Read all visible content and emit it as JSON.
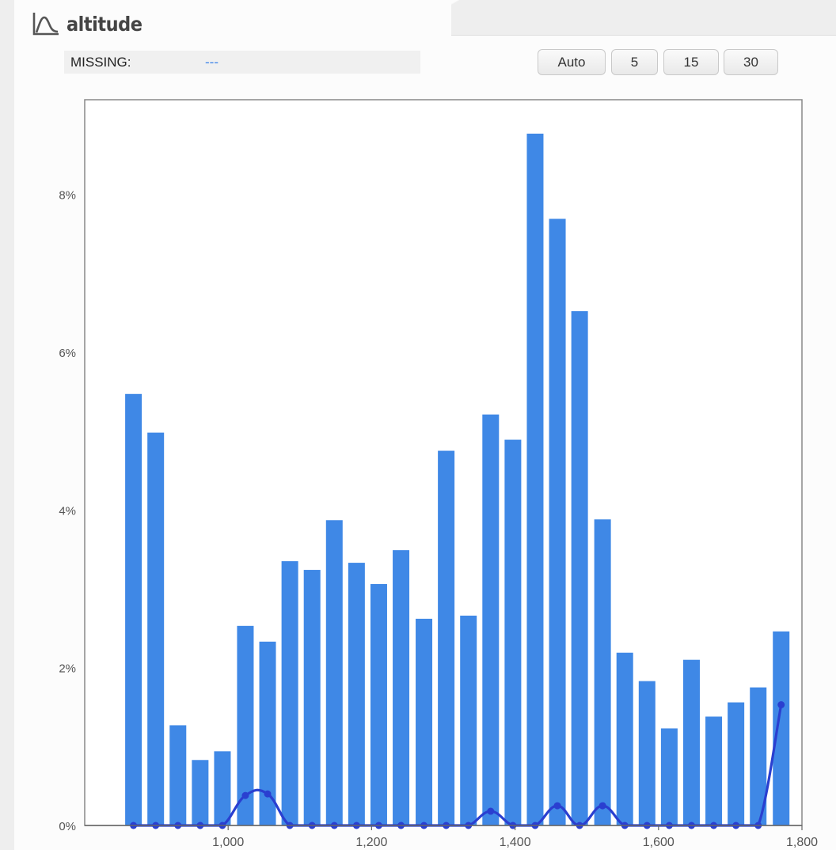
{
  "header": {
    "title": "altitude",
    "icon": "distribution-curve-icon"
  },
  "missing": {
    "label": "MISSING:",
    "value": "---"
  },
  "bin_buttons": [
    {
      "label": "Auto"
    },
    {
      "label": "5"
    },
    {
      "label": "15"
    },
    {
      "label": "30"
    }
  ],
  "colors": {
    "bar": "#3f88e6",
    "line": "#2a3fd0",
    "frame": "#888888"
  },
  "chart_data": {
    "type": "bar",
    "title": "",
    "xlabel": "",
    "ylabel": "",
    "xlim": [
      800,
      1800
    ],
    "ylim": [
      0,
      9.2
    ],
    "grid": false,
    "x_ticks": [
      {
        "value": 1000,
        "label": "1,000"
      },
      {
        "value": 1200,
        "label": "1,200"
      },
      {
        "value": 1400,
        "label": "1,400"
      },
      {
        "value": 1600,
        "label": "1,600"
      },
      {
        "value": 1800,
        "label": "1,800"
      }
    ],
    "y_ticks": [
      {
        "value": 0,
        "label": "0%"
      },
      {
        "value": 2,
        "label": "2%"
      },
      {
        "value": 4,
        "label": "4%"
      },
      {
        "value": 6,
        "label": "6%"
      },
      {
        "value": 8,
        "label": "8%"
      }
    ],
    "x": [
      868,
      899,
      930,
      961,
      992,
      1024,
      1055,
      1086,
      1117,
      1148,
      1179,
      1210,
      1241,
      1273,
      1304,
      1335,
      1366,
      1397,
      1428,
      1459,
      1490,
      1522,
      1553,
      1584,
      1615,
      1646,
      1677,
      1708,
      1739,
      1771
    ],
    "series": [
      {
        "type": "bar",
        "values": [
          5.47,
          4.98,
          1.27,
          0.83,
          0.94,
          2.53,
          2.33,
          3.35,
          3.24,
          3.87,
          3.33,
          3.06,
          3.49,
          2.62,
          4.75,
          2.66,
          5.21,
          4.89,
          8.77,
          7.69,
          6.52,
          3.88,
          2.19,
          1.83,
          1.23,
          2.1,
          1.38,
          1.56,
          1.75,
          2.46
        ]
      },
      {
        "type": "line",
        "values": [
          0,
          0,
          0,
          0,
          0,
          0.38,
          0.4,
          0,
          0,
          0,
          0,
          0,
          0,
          0,
          0,
          0,
          0.18,
          0,
          0,
          0.25,
          0,
          0.25,
          0,
          0,
          0,
          0,
          0,
          0,
          0,
          1.53
        ]
      }
    ]
  }
}
